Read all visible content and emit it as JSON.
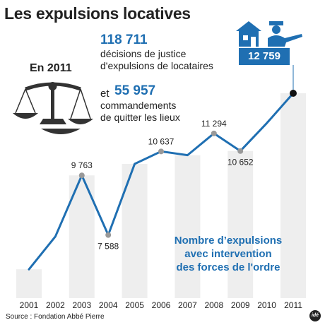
{
  "title": "Les expulsions locatives",
  "summary": {
    "year_label": "En 2011",
    "stat1_value": "118 711",
    "stat1_text_line1": "décisions de justice",
    "stat1_text_line2": "d'expulsions de locataires",
    "stat2_prefix": "et",
    "stat2_value": "55 957",
    "stat2_text_line1": "commandements",
    "stat2_text_line2": "de quitter les lieux"
  },
  "annotation": {
    "line1": "Nombre d’expulsions",
    "line2": "avec intervention",
    "line3": "des forces de l'ordre"
  },
  "highlight_label": "12 759",
  "source": "Source : Fondation Abbé Pierre",
  "logo": "idé",
  "icons": [
    "scales-of-justice-icon",
    "house-icon",
    "police-officer-icon"
  ],
  "colors": {
    "line": "#1f6fb2",
    "accent": "#1f6fb2",
    "bar": "#eeeeee",
    "marker": "#999999"
  },
  "chart_data": {
    "type": "line",
    "x": [
      "2001",
      "2002",
      "2003",
      "2004",
      "2005",
      "2006",
      "2007",
      "2008",
      "2009",
      "2010",
      "2011"
    ],
    "series": [
      {
        "values": [
          6337,
          7534,
          9763,
          7588,
          10182,
          10637,
          10502,
          11294,
          10652,
          11670,
          12759
        ]
      }
    ],
    "data_labels": [
      {
        "x": "2003",
        "label": "9 763"
      },
      {
        "x": "2004",
        "label": "7 588"
      },
      {
        "x": "2006",
        "label": "10 637"
      },
      {
        "x": "2008",
        "label": "11 294"
      },
      {
        "x": "2009",
        "label": "10 652"
      }
    ],
    "highlight": {
      "x": "2011",
      "label": "12 759"
    },
    "bars_alternating": true,
    "ylim": [
      5800,
      12759
    ],
    "grid": false,
    "legend": "none"
  }
}
